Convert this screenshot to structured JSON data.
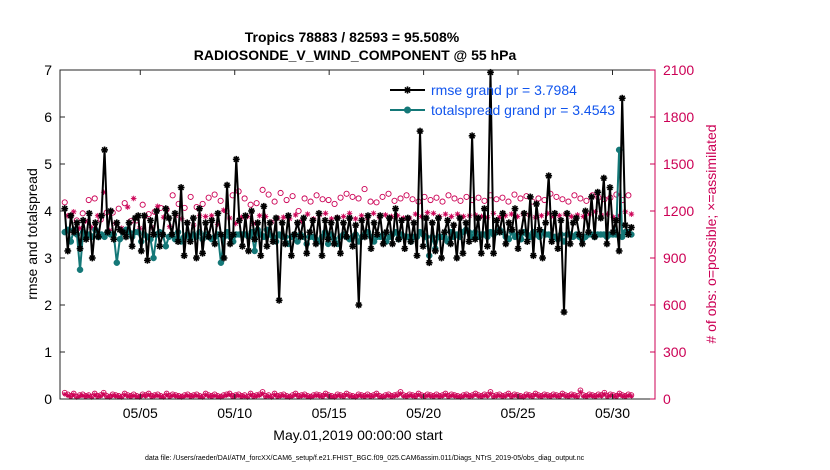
{
  "chart_data": {
    "type": "line",
    "title_line1": "Tropics 78883 / 82593 = 95.508%",
    "title_line2": "RADIOSONDE_V_WIND_COMPONENT @ 55 hPa",
    "xlabel": "May.01,2019 00:00:00 start",
    "ylabel_left": "rmse and totalspread",
    "ylabel_right": "# of obs: o=possible; ×=assimilated",
    "footer": "data file: /Users/raeder/DAI/ATM_forcXX/CAM6_setup/f.e21.FHIST_BGC.f09_025.CAM6assim.011/Diags_NTrS_2019-05/obs_diag_output.nc",
    "xlim": [
      0.75,
      32.25
    ],
    "ylim_left": [
      0,
      7
    ],
    "ylim_right": [
      0,
      2100
    ],
    "xticks": [
      5,
      10,
      15,
      20,
      25,
      30
    ],
    "xtick_labels": [
      "05/05",
      "05/10",
      "05/15",
      "05/20",
      "05/25",
      "05/30"
    ],
    "yticks_left": [
      0,
      1,
      2,
      3,
      4,
      5,
      6,
      7
    ],
    "yticks_right": [
      0,
      300,
      600,
      900,
      1200,
      1500,
      1800,
      2100
    ],
    "legend": [
      {
        "label": "rmse grand pr = 3.7984",
        "color": "#000000",
        "marker": "asterisk"
      },
      {
        "label": "totalspread grand pr = 3.4543",
        "color": "#147878",
        "marker": "dot"
      }
    ],
    "colors": {
      "rmse": "#000000",
      "spread": "#147878",
      "obs": "#cc0055",
      "legend_text": "#1155ee"
    },
    "series": [
      {
        "name": "rmse",
        "values": [
          4.05,
          3.15,
          3.9,
          3.55,
          3.75,
          3.2,
          3.8,
          3.4,
          3.95,
          3.0,
          3.75,
          3.45,
          3.9,
          5.3,
          3.55,
          4.0,
          3.4,
          3.75,
          3.6,
          3.55,
          3.45,
          3.75,
          3.25,
          3.85,
          3.9,
          3.15,
          3.9,
          2.95,
          3.8,
          3.5,
          4.0,
          3.25,
          3.5,
          4.05,
          3.85,
          3.5,
          3.95,
          3.35,
          4.5,
          3.05,
          3.75,
          3.35,
          3.85,
          3.0,
          4.05,
          3.1,
          3.75,
          3.45,
          3.8,
          3.3,
          3.95,
          3.5,
          3.0,
          4.55,
          3.3,
          3.5,
          5.1,
          3.8,
          3.25,
          3.9,
          3.15,
          4.0,
          3.4,
          3.75,
          3.05,
          4.1,
          3.25,
          3.75,
          3.35,
          3.85,
          2.1,
          3.75,
          3.3,
          3.9,
          3.05,
          3.5,
          3.75,
          3.45,
          3.85,
          3.1,
          3.55,
          3.8,
          3.3,
          3.95,
          3.05,
          3.8,
          3.4,
          3.75,
          3.3,
          3.85,
          3.1,
          3.75,
          3.45,
          3.85,
          3.25,
          3.7,
          2.0,
          3.8,
          3.45,
          3.9,
          3.2,
          3.75,
          3.5,
          3.9,
          3.3,
          3.55,
          3.85,
          3.3,
          4.05,
          3.4,
          3.8,
          3.2,
          3.85,
          3.35,
          3.75,
          3.05,
          5.7,
          3.25,
          3.85,
          2.9,
          3.75,
          3.15,
          3.85,
          3.0,
          3.55,
          3.8,
          3.3,
          3.7,
          3.0,
          3.85,
          3.1,
          3.75,
          3.35,
          5.6,
          3.4,
          3.85,
          3.1,
          4.05,
          3.25,
          6.95,
          3.1,
          3.8,
          3.55,
          3.95,
          3.3,
          3.75,
          3.6,
          4.05,
          3.2,
          3.55,
          3.95,
          3.35,
          4.3,
          3.05,
          4.15,
          3.6,
          3.0,
          3.75,
          4.75,
          3.35,
          3.95,
          3.2,
          3.8,
          1.85,
          3.95,
          3.3,
          3.75,
          3.85,
          3.5,
          3.3,
          4.0,
          3.55,
          4.3,
          3.45,
          4.4,
          3.85,
          4.7,
          3.3,
          4.5,
          3.55,
          3.8,
          3.15,
          6.4,
          3.7,
          3.5,
          3.65
        ]
      },
      {
        "name": "totalspread",
        "values": [
          3.55,
          3.6,
          3.35,
          3.6,
          3.5,
          2.75,
          3.55,
          3.45,
          3.5,
          3.45,
          3.6,
          3.45,
          3.5,
          3.45,
          3.55,
          3.5,
          3.5,
          2.9,
          3.4,
          3.55,
          3.6,
          3.55,
          3.45,
          3.55,
          3.55,
          3.35,
          3.5,
          3.45,
          3.4,
          3.0,
          3.5,
          3.55,
          3.5,
          3.25,
          3.45,
          3.5,
          3.4,
          3.55,
          3.35,
          3.45,
          3.5,
          3.4,
          3.5,
          3.45,
          3.55,
          3.4,
          3.5,
          3.45,
          3.4,
          3.45,
          3.5,
          2.9,
          3.45,
          3.55,
          3.45,
          3.35,
          3.5,
          3.5,
          3.5,
          3.5,
          3.45,
          3.55,
          3.15,
          3.6,
          3.5,
          3.45,
          3.6,
          3.5,
          3.45,
          3.35,
          3.5,
          3.45,
          3.45,
          3.3,
          3.45,
          3.5,
          3.35,
          3.5,
          3.45,
          3.3,
          3.45,
          3.45,
          3.4,
          3.35,
          3.45,
          3.55,
          3.3,
          3.5,
          3.4,
          3.3,
          3.45,
          3.5,
          3.45,
          3.4,
          3.45,
          3.5,
          3.35,
          3.45,
          3.5,
          3.55,
          3.45,
          3.35,
          3.45,
          3.45,
          3.5,
          3.35,
          3.45,
          3.5,
          3.55,
          3.4,
          3.5,
          3.45,
          3.45,
          3.35,
          3.45,
          3.45,
          3.55,
          3.5,
          3.45,
          3.05,
          3.45,
          3.2,
          3.45,
          3.45,
          3.45,
          3.35,
          3.55,
          3.45,
          3.5,
          3.45,
          3.55,
          3.6,
          3.55,
          3.45,
          3.55,
          3.45,
          3.5,
          3.5,
          3.45,
          3.55,
          3.5,
          3.55,
          3.6,
          3.55,
          3.45,
          3.4,
          3.55,
          3.45,
          3.5,
          3.4,
          3.55,
          3.5,
          3.45,
          3.55,
          3.5,
          3.45,
          3.55,
          3.5,
          3.5,
          3.45,
          3.45,
          3.4,
          3.5,
          3.35,
          3.5,
          3.5,
          3.45,
          3.5,
          3.45,
          3.4,
          3.45,
          3.5,
          3.5,
          3.45,
          3.5,
          3.5,
          3.5,
          3.45,
          3.5,
          3.5,
          3.5,
          5.3,
          3.45,
          3.55,
          3.55,
          3.5
        ]
      }
    ],
    "obs_possible": [
      1255,
      1200,
      1170,
      1225,
      1140,
      1120,
      1185,
      1165,
      1270,
      1125,
      1280,
      1205,
      1145,
      1355,
      1190,
      1105,
      1190,
      1150,
      1215,
      1120,
      1250,
      1255,
      1135,
      1315,
      1140,
      1120,
      1240,
      1195,
      1180,
      1125,
      1195,
      1265,
      1220,
      1190,
      1210,
      1130,
      1300,
      1200,
      1245,
      1180,
      1220,
      1155,
      1290,
      1140,
      1225,
      1200,
      1245,
      1195,
      1285,
      1200,
      1305,
      1145,
      1265,
      1235,
      1200,
      1185,
      1300,
      1150,
      1325,
      1190,
      1280,
      1195,
      1240,
      1150,
      1250,
      1200,
      1335,
      1195,
      1305,
      1160,
      1260,
      1185,
      1315,
      1190,
      1270,
      1180,
      1295,
      1205,
      1200,
      1165,
      1280,
      1210,
      1260,
      1180,
      1300,
      1205,
      1275,
      1215,
      1270,
      1180,
      1245,
      1190,
      1285,
      1195,
      1310,
      1215,
      1290,
      1180,
      1280,
      1200,
      1340,
      1185,
      1260,
      1215,
      1255,
      1190,
      1290,
      1205,
      1310,
      1195,
      1265,
      1200,
      1280,
      1185,
      1300,
      1185,
      1275,
      1210,
      1260,
      1195,
      1290,
      1220,
      1270,
      1215,
      1285,
      1195,
      1260,
      1210,
      1300,
      1195,
      1280,
      1210,
      1265,
      1195,
      1290,
      1200,
      1270,
      1205,
      1285,
      1195,
      1265,
      1190,
      1300,
      1215,
      1275,
      1190,
      1285,
      1200,
      1260,
      1210,
      1305,
      1195,
      1280,
      1210,
      1295,
      1205,
      1260,
      1190,
      1280,
      1200,
      1270,
      1215,
      1310,
      1195,
      1290,
      1200,
      1275,
      1210,
      1260,
      1195,
      1300,
      1205,
      1280,
      1195,
      1265,
      1210,
      1300,
      1225,
      1285,
      1205,
      1275,
      1210,
      1285,
      1190,
      1305,
      1200,
      1270,
      1225,
      1300,
      1210
    ],
    "obs_assimilated": [
      1210,
      1170,
      1140,
      1195,
      1105,
      1090,
      1150,
      1135,
      1235,
      1095,
      1245,
      1170,
      1110,
      1320,
      1160,
      1075,
      1160,
      1120,
      1185,
      1090,
      1220,
      1225,
      1105,
      1280,
      1110,
      1090,
      1205,
      1165,
      1150,
      1095,
      1165,
      1230,
      1190,
      1160,
      1180,
      1100,
      1265,
      1170,
      1215,
      1150,
      1190,
      1125,
      1260,
      1110,
      1195,
      1170,
      1215,
      1165,
      1255,
      1170,
      1270,
      1115,
      1235,
      1205,
      1170,
      1155,
      1270,
      1120,
      1295,
      1160,
      1250,
      1165,
      1210,
      1120,
      1220,
      1170,
      1305,
      1165,
      1275,
      1130,
      1230,
      1155,
      1285,
      1160,
      1240,
      1150,
      1265,
      1175,
      1170,
      1135,
      1250,
      1180,
      1230,
      1150,
      1270,
      1175,
      1245,
      1185,
      1240,
      1150,
      1215,
      1160,
      1255,
      1165,
      1280,
      1185,
      1260,
      1150,
      1250,
      1170,
      1310,
      1155,
      1230,
      1185,
      1225,
      1160,
      1260,
      1175,
      1280,
      1165,
      1235,
      1170,
      1250,
      1155,
      1270,
      1155,
      1245,
      1180,
      1230,
      1165,
      1260,
      1190,
      1240,
      1185,
      1255,
      1165,
      1230,
      1180,
      1270,
      1165,
      1250,
      1180,
      1235,
      1165,
      1260,
      1170,
      1240,
      1175,
      1255,
      1165,
      1235,
      1160,
      1270,
      1185,
      1245,
      1160,
      1255,
      1170,
      1230,
      1180,
      1275,
      1165,
      1250,
      1180,
      1265,
      1175,
      1230,
      1160,
      1250,
      1170,
      1240,
      1185,
      1280,
      1165,
      1260,
      1170,
      1245,
      1180,
      1230,
      1165,
      1270,
      1175,
      1250,
      1165,
      1235,
      1180,
      1270,
      1195,
      1255,
      1175,
      1245,
      1180,
      1255,
      1160,
      1275,
      1170,
      1240,
      1195,
      1270,
      1180
    ],
    "obs_bottom_possible": [
      40,
      30,
      20,
      35,
      15,
      25,
      30,
      20,
      25,
      15,
      35,
      20,
      25,
      40,
      20,
      15,
      30,
      25,
      20,
      15,
      35,
      25,
      20,
      30,
      20,
      15,
      30,
      25,
      35,
      20,
      25,
      30,
      20,
      15,
      35,
      20,
      30,
      25,
      20,
      15,
      25,
      30,
      20,
      25,
      30,
      20,
      15,
      35,
      25,
      20,
      30,
      20,
      15,
      25,
      30,
      35,
      20,
      25,
      30,
      20,
      25,
      15,
      35,
      20,
      25,
      30,
      45,
      20,
      25,
      15,
      35,
      20,
      25,
      30,
      20,
      15,
      25,
      35,
      20,
      25,
      30,
      20,
      15,
      25,
      30,
      25,
      20,
      35,
      25,
      20,
      15,
      30,
      25,
      20,
      35,
      25,
      20,
      15,
      30,
      25,
      20,
      30,
      20,
      25,
      35,
      20,
      15,
      25,
      30,
      20,
      25,
      30,
      45,
      25,
      20,
      30,
      25,
      20,
      35,
      25,
      20,
      30,
      25,
      20,
      30,
      20,
      25,
      35,
      20,
      30,
      25,
      20,
      15,
      25,
      30,
      20,
      25,
      35,
      25,
      20,
      30,
      25,
      45,
      20,
      25,
      30,
      20,
      25,
      35,
      20,
      30,
      25,
      20,
      15,
      30,
      25,
      20,
      35,
      25,
      20,
      30,
      25,
      20,
      30,
      25,
      20,
      35,
      25,
      20,
      30,
      25,
      20,
      55,
      25,
      20,
      30,
      25,
      20,
      30,
      25,
      40,
      20,
      30,
      25,
      20,
      35,
      25,
      20,
      30,
      25
    ],
    "obs_bottom_assimilated": [
      30,
      22,
      15,
      28,
      10,
      18,
      22,
      15,
      20,
      10,
      28,
      15,
      18,
      32,
      15,
      10,
      22,
      18,
      15,
      10,
      28,
      18,
      15,
      22,
      15,
      10,
      22,
      18,
      28,
      15,
      18,
      22,
      15,
      10,
      28,
      15,
      22,
      18,
      15,
      10,
      18,
      22,
      15,
      18,
      22,
      15,
      10,
      28,
      18,
      15,
      22,
      15,
      10,
      18,
      22,
      28,
      15,
      18,
      22,
      15,
      18,
      10,
      28,
      15,
      18,
      22,
      35,
      15,
      18,
      10,
      28,
      15,
      18,
      22,
      15,
      10,
      18,
      28,
      15,
      18,
      22,
      15,
      10,
      18,
      22,
      18,
      15,
      28,
      18,
      15,
      10,
      22,
      18,
      15,
      28,
      18,
      15,
      10,
      22,
      18,
      15,
      22,
      15,
      18,
      28,
      15,
      10,
      18,
      22,
      15,
      18,
      22,
      35,
      18,
      15,
      22,
      18,
      15,
      28,
      18,
      15,
      22,
      18,
      15,
      22,
      15,
      18,
      28,
      15,
      22,
      18,
      15,
      10,
      18,
      22,
      15,
      18,
      28,
      18,
      15,
      22,
      18,
      35,
      15,
      18,
      22,
      15,
      18,
      28,
      15,
      22,
      18,
      15,
      10,
      22,
      18,
      15,
      28,
      18,
      15,
      22,
      18,
      15,
      22,
      18,
      15,
      28,
      18,
      15,
      22,
      18,
      15,
      45,
      18,
      15,
      22,
      18,
      15,
      22,
      18,
      32,
      15,
      22,
      18,
      15,
      28,
      18,
      15,
      22,
      18
    ]
  }
}
